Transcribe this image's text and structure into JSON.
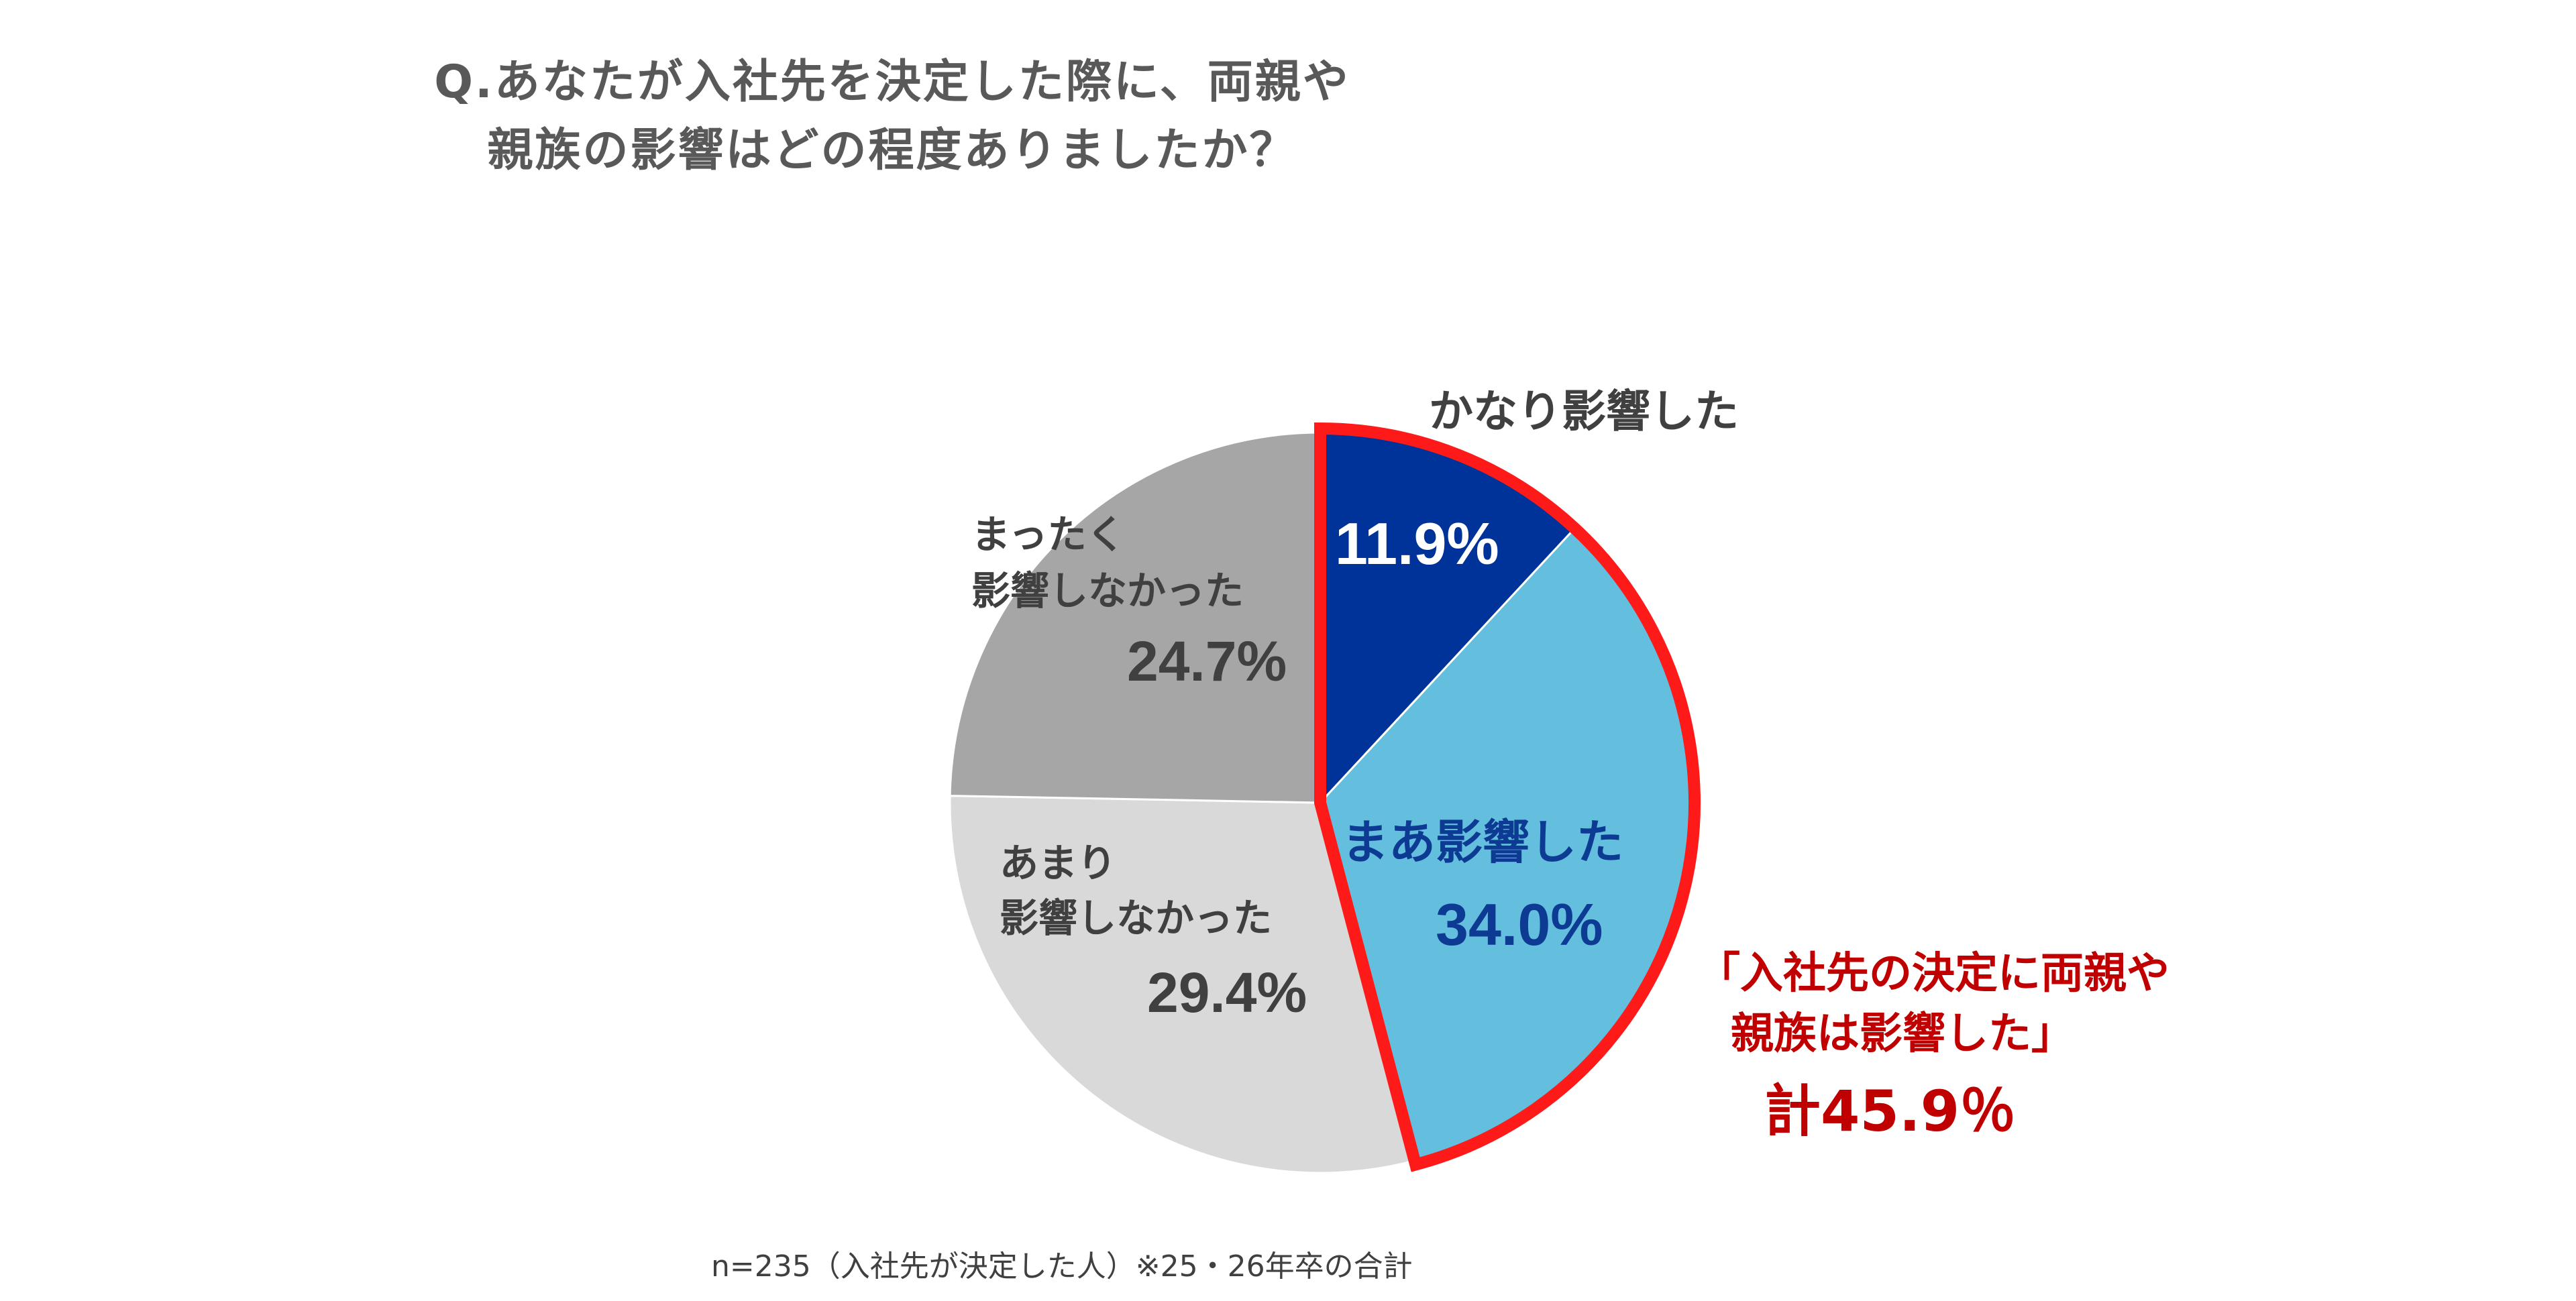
{
  "chart_data": {
    "type": "pie",
    "title": [
      "Q.あなたが入社先を決定した際に、両親や",
      "親族の影響はどの程度ありましたか？"
    ],
    "slices": [
      {
        "label": "かなり影響した",
        "value": 11.9,
        "value_label": "11.9%",
        "color": "#003399",
        "label_color": "#ffffff"
      },
      {
        "label": "まあ影響した",
        "value": 34.0,
        "value_label": "34.0%",
        "color": "#63bfdd",
        "label_color": "#0d3b94"
      },
      {
        "label": "あまり影響しなかった",
        "label_lines": [
          "あまり",
          "影響しなかった"
        ],
        "value": 29.4,
        "value_label": "29.4%",
        "color": "#d9d9d9",
        "label_color": "#404040"
      },
      {
        "label": "まったく影響しなかった",
        "label_lines": [
          "まったく",
          "影響しなかった"
        ],
        "value": 24.7,
        "value_label": "24.7%",
        "color": "#a6a6a6",
        "label_color": "#404040"
      }
    ],
    "highlight": {
      "border_color": "#ff1a1a",
      "text_lines": [
        "「入社先の決定に両親や",
        "親族は影響した」"
      ],
      "total_label": "計45.9％"
    },
    "footnote": "n=235（入社先が決定した人）※25・26年卒の合計"
  }
}
